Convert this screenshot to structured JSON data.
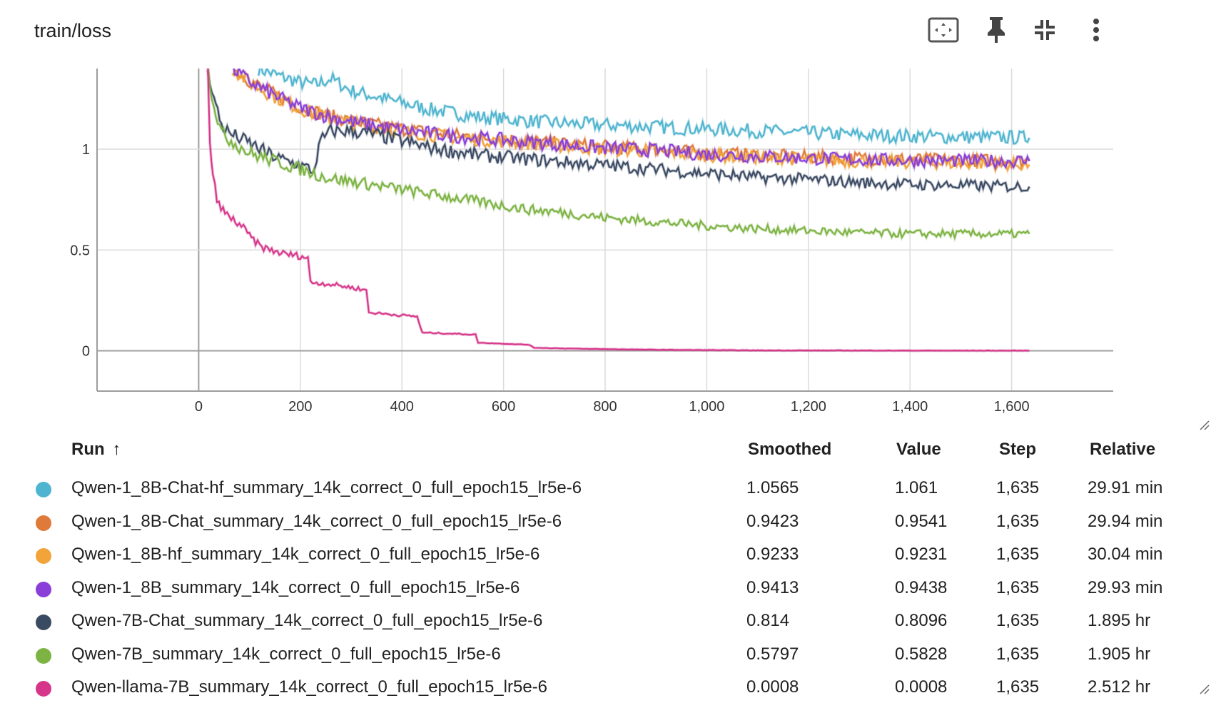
{
  "card": {
    "title": "train/loss",
    "toolbar": [
      {
        "name": "fit-domain-button",
        "icon": "fit-to-data-icon"
      },
      {
        "name": "pin-button",
        "icon": "pin-icon"
      },
      {
        "name": "collapse-button",
        "icon": "collapse-icon"
      },
      {
        "name": "more-menu-button",
        "icon": "more-vert-icon"
      }
    ]
  },
  "chart_data": {
    "type": "line",
    "title": "train/loss",
    "xlabel": "",
    "ylabel": "",
    "xlim": [
      -200,
      1800
    ],
    "ylim": [
      -0.2,
      1.4
    ],
    "x_ticks": [
      "0",
      "200",
      "400",
      "600",
      "800",
      "1,000",
      "1,200",
      "1,400",
      "1,600"
    ],
    "y_ticks": [
      "0",
      "0.5",
      "1"
    ],
    "grid": true,
    "legend": "table below chart",
    "series": [
      {
        "name": "Qwen-1_8B-Chat-hf_summary_14k_correct_0_full_epoch15_lr5e-6",
        "color": "#4fb4cf",
        "points": [
          [
            118,
            1.4
          ],
          [
            150,
            1.37
          ],
          [
            200,
            1.33
          ],
          [
            230,
            1.32
          ],
          [
            260,
            1.35
          ],
          [
            300,
            1.29
          ],
          [
            350,
            1.26
          ],
          [
            400,
            1.23
          ],
          [
            450,
            1.2
          ],
          [
            500,
            1.18
          ],
          [
            550,
            1.16
          ],
          [
            600,
            1.15
          ],
          [
            650,
            1.14
          ],
          [
            700,
            1.13
          ],
          [
            800,
            1.12
          ],
          [
            900,
            1.11
          ],
          [
            1000,
            1.1
          ],
          [
            1100,
            1.09
          ],
          [
            1200,
            1.08
          ],
          [
            1300,
            1.07
          ],
          [
            1400,
            1.065
          ],
          [
            1500,
            1.06
          ],
          [
            1600,
            1.058
          ],
          [
            1635,
            1.0565
          ]
        ]
      },
      {
        "name": "Qwen-1_8B-Chat_summary_14k_correct_0_full_epoch15_lr5e-6",
        "color": "#e07a3a",
        "points": [
          [
            68,
            1.4
          ],
          [
            100,
            1.34
          ],
          [
            150,
            1.27
          ],
          [
            200,
            1.21
          ],
          [
            250,
            1.17
          ],
          [
            300,
            1.14
          ],
          [
            350,
            1.12
          ],
          [
            400,
            1.1
          ],
          [
            500,
            1.07
          ],
          [
            600,
            1.05
          ],
          [
            700,
            1.03
          ],
          [
            800,
            1.01
          ],
          [
            900,
            1.0
          ],
          [
            1000,
            0.98
          ],
          [
            1100,
            0.97
          ],
          [
            1200,
            0.96
          ],
          [
            1300,
            0.955
          ],
          [
            1400,
            0.95
          ],
          [
            1500,
            0.945
          ],
          [
            1600,
            0.943
          ],
          [
            1635,
            0.9423
          ]
        ]
      },
      {
        "name": "Qwen-1_8B-hf_summary_14k_correct_0_full_epoch15_lr5e-6",
        "color": "#f2a33a",
        "points": [
          [
            66,
            1.4
          ],
          [
            100,
            1.33
          ],
          [
            150,
            1.26
          ],
          [
            200,
            1.2
          ],
          [
            250,
            1.16
          ],
          [
            300,
            1.13
          ],
          [
            350,
            1.11
          ],
          [
            400,
            1.09
          ],
          [
            500,
            1.06
          ],
          [
            600,
            1.04
          ],
          [
            700,
            1.02
          ],
          [
            800,
            1.0
          ],
          [
            900,
            0.99
          ],
          [
            1000,
            0.97
          ],
          [
            1100,
            0.96
          ],
          [
            1200,
            0.95
          ],
          [
            1300,
            0.94
          ],
          [
            1400,
            0.935
          ],
          [
            1500,
            0.93
          ],
          [
            1600,
            0.925
          ],
          [
            1635,
            0.9233
          ]
        ]
      },
      {
        "name": "Qwen-1_8B_summary_14k_correct_0_full_epoch15_lr5e-6",
        "color": "#8a3fd9",
        "points": [
          [
            67,
            1.4
          ],
          [
            100,
            1.335
          ],
          [
            150,
            1.265
          ],
          [
            200,
            1.205
          ],
          [
            250,
            1.165
          ],
          [
            300,
            1.135
          ],
          [
            350,
            1.115
          ],
          [
            400,
            1.095
          ],
          [
            500,
            1.065
          ],
          [
            600,
            1.045
          ],
          [
            700,
            1.025
          ],
          [
            800,
            1.005
          ],
          [
            900,
            0.995
          ],
          [
            1000,
            0.975
          ],
          [
            1100,
            0.965
          ],
          [
            1200,
            0.955
          ],
          [
            1300,
            0.948
          ],
          [
            1400,
            0.944
          ],
          [
            1500,
            0.942
          ],
          [
            1600,
            0.941
          ],
          [
            1635,
            0.9413
          ]
        ]
      },
      {
        "name": "Qwen-7B-Chat_summary_14k_correct_0_full_epoch15_lr5e-6",
        "color": "#3b4a63",
        "points": [
          [
            18,
            1.4
          ],
          [
            30,
            1.25
          ],
          [
            45,
            1.12
          ],
          [
            60,
            1.08
          ],
          [
            100,
            1.03
          ],
          [
            150,
            0.96
          ],
          [
            200,
            0.92
          ],
          [
            220,
            0.9
          ],
          [
            225,
            0.88
          ],
          [
            240,
            1.04
          ],
          [
            260,
            1.09
          ],
          [
            300,
            1.09
          ],
          [
            350,
            1.07
          ],
          [
            400,
            1.04
          ],
          [
            450,
            1.01
          ],
          [
            500,
            0.99
          ],
          [
            550,
            0.97
          ],
          [
            600,
            0.96
          ],
          [
            700,
            0.94
          ],
          [
            800,
            0.92
          ],
          [
            900,
            0.9
          ],
          [
            1000,
            0.88
          ],
          [
            1100,
            0.86
          ],
          [
            1200,
            0.85
          ],
          [
            1300,
            0.835
          ],
          [
            1400,
            0.825
          ],
          [
            1500,
            0.82
          ],
          [
            1600,
            0.815
          ],
          [
            1635,
            0.814
          ]
        ]
      },
      {
        "name": "Qwen-7B_summary_14k_correct_0_full_epoch15_lr5e-6",
        "color": "#7cb342",
        "points": [
          [
            18,
            1.4
          ],
          [
            30,
            1.22
          ],
          [
            45,
            1.08
          ],
          [
            60,
            1.05
          ],
          [
            100,
            0.98
          ],
          [
            150,
            0.94
          ],
          [
            200,
            0.9
          ],
          [
            250,
            0.86
          ],
          [
            300,
            0.84
          ],
          [
            350,
            0.82
          ],
          [
            400,
            0.8
          ],
          [
            450,
            0.78
          ],
          [
            500,
            0.76
          ],
          [
            550,
            0.74
          ],
          [
            600,
            0.72
          ],
          [
            650,
            0.7
          ],
          [
            700,
            0.69
          ],
          [
            800,
            0.66
          ],
          [
            900,
            0.64
          ],
          [
            1000,
            0.62
          ],
          [
            1100,
            0.605
          ],
          [
            1200,
            0.595
          ],
          [
            1300,
            0.585
          ],
          [
            1400,
            0.58
          ],
          [
            1500,
            0.58
          ],
          [
            1600,
            0.579
          ],
          [
            1635,
            0.5797
          ]
        ]
      },
      {
        "name": "Qwen-llama-7B_summary_14k_correct_0_full_epoch15_lr5e-6",
        "color": "#d6368a",
        "points": [
          [
            18,
            1.4
          ],
          [
            22,
            1.05
          ],
          [
            28,
            0.85
          ],
          [
            40,
            0.72
          ],
          [
            60,
            0.66
          ],
          [
            80,
            0.63
          ],
          [
            100,
            0.57
          ],
          [
            120,
            0.52
          ],
          [
            140,
            0.5
          ],
          [
            170,
            0.48
          ],
          [
            200,
            0.47
          ],
          [
            215,
            0.46
          ],
          [
            220,
            0.34
          ],
          [
            260,
            0.33
          ],
          [
            310,
            0.31
          ],
          [
            330,
            0.3
          ],
          [
            335,
            0.19
          ],
          [
            380,
            0.18
          ],
          [
            430,
            0.17
          ],
          [
            440,
            0.09
          ],
          [
            500,
            0.085
          ],
          [
            545,
            0.08
          ],
          [
            550,
            0.04
          ],
          [
            600,
            0.035
          ],
          [
            650,
            0.03
          ],
          [
            660,
            0.015
          ],
          [
            750,
            0.01
          ],
          [
            900,
            0.005
          ],
          [
            1100,
            0.002
          ],
          [
            1400,
            0.001
          ],
          [
            1635,
            0.0008
          ]
        ]
      }
    ]
  },
  "legend_table": {
    "headers": {
      "run": "Run",
      "sort_arrow": "↑",
      "smoothed": "Smoothed",
      "value": "Value",
      "step": "Step",
      "relative": "Relative"
    },
    "rows": [
      {
        "color": "#4fb4cf",
        "run": "Qwen-1_8B-Chat-hf_summary_14k_correct_0_full_epoch15_lr5e-6",
        "smoothed": "1.0565",
        "value": "1.061",
        "step": "1,635",
        "relative": "29.91 min"
      },
      {
        "color": "#e07a3a",
        "run": "Qwen-1_8B-Chat_summary_14k_correct_0_full_epoch15_lr5e-6",
        "smoothed": "0.9423",
        "value": "0.9541",
        "step": "1,635",
        "relative": "29.94 min"
      },
      {
        "color": "#f2a33a",
        "run": "Qwen-1_8B-hf_summary_14k_correct_0_full_epoch15_lr5e-6",
        "smoothed": "0.9233",
        "value": "0.9231",
        "step": "1,635",
        "relative": "30.04 min"
      },
      {
        "color": "#8a3fd9",
        "run": "Qwen-1_8B_summary_14k_correct_0_full_epoch15_lr5e-6",
        "smoothed": "0.9413",
        "value": "0.9438",
        "step": "1,635",
        "relative": "29.93 min"
      },
      {
        "color": "#3b4a63",
        "run": "Qwen-7B-Chat_summary_14k_correct_0_full_epoch15_lr5e-6",
        "smoothed": "0.814",
        "value": "0.8096",
        "step": "1,635",
        "relative": "1.895 hr"
      },
      {
        "color": "#7cb342",
        "run": "Qwen-7B_summary_14k_correct_0_full_epoch15_lr5e-6",
        "smoothed": "0.5797",
        "value": "0.5828",
        "step": "1,635",
        "relative": "1.905 hr"
      },
      {
        "color": "#d6368a",
        "run": "Qwen-llama-7B_summary_14k_correct_0_full_epoch15_lr5e-6",
        "smoothed": "0.0008",
        "value": "0.0008",
        "step": "1,635",
        "relative": "2.512 hr"
      }
    ]
  }
}
